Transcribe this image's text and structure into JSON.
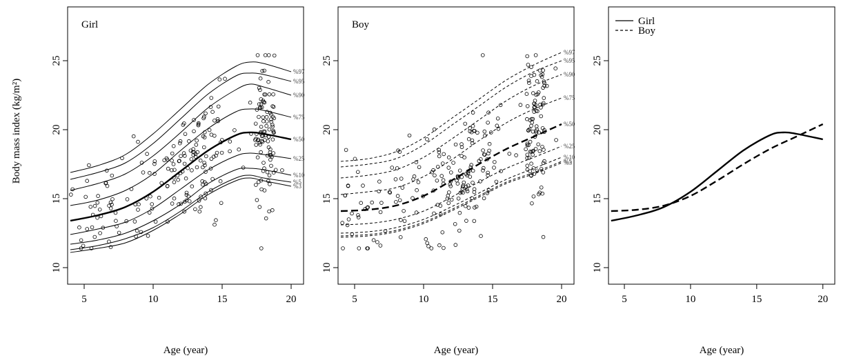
{
  "ylabel": "Body mass index (kg/m²)",
  "chart_data": [
    {
      "type": "line",
      "panel_label": "Girl",
      "xlabel": "Age (year)",
      "xlim": [
        3.8,
        20.9
      ],
      "ylim": [
        8.8,
        28.9
      ],
      "xticks": [
        5,
        10,
        15,
        20
      ],
      "yticks": [
        10,
        15,
        20,
        25
      ],
      "x": [
        4,
        6,
        8,
        10,
        12,
        14,
        16,
        17,
        18,
        20
      ],
      "series": [
        {
          "name": "%97",
          "values": [
            16.9,
            17.4,
            18.2,
            19.7,
            21.5,
            23.3,
            24.6,
            24.9,
            24.8,
            24.2
          ]
        },
        {
          "name": "%95",
          "values": [
            16.4,
            16.9,
            17.6,
            19.0,
            20.8,
            22.6,
            23.9,
            24.1,
            24.0,
            23.5
          ]
        },
        {
          "name": "%90",
          "values": [
            15.6,
            16.1,
            16.8,
            18.1,
            19.8,
            21.6,
            22.9,
            23.3,
            23.1,
            22.5
          ]
        },
        {
          "name": "%75",
          "values": [
            14.5,
            14.9,
            15.6,
            16.8,
            18.5,
            20.1,
            21.3,
            21.5,
            21.4,
            20.9
          ]
        },
        {
          "name": "%50",
          "values": [
            13.4,
            13.8,
            14.4,
            15.5,
            17.0,
            18.5,
            19.6,
            19.8,
            19.7,
            19.3
          ]
        },
        {
          "name": "%25",
          "values": [
            12.4,
            12.8,
            13.3,
            14.3,
            15.7,
            17.1,
            18.1,
            18.3,
            18.2,
            17.9
          ]
        },
        {
          "name": "%10",
          "values": [
            11.7,
            12.0,
            12.5,
            13.4,
            14.6,
            16.1,
            17.1,
            17.2,
            17.1,
            16.7
          ]
        },
        {
          "name": "%5",
          "values": [
            11.3,
            11.6,
            12.1,
            12.9,
            14.1,
            15.5,
            16.5,
            16.7,
            16.5,
            16.2
          ]
        },
        {
          "name": "%3",
          "values": [
            11.1,
            11.4,
            11.8,
            12.7,
            13.9,
            15.3,
            16.3,
            16.5,
            16.3,
            15.9
          ]
        }
      ],
      "median_series": "%50",
      "has_scatter": true
    },
    {
      "type": "line",
      "panel_label": "Boy",
      "xlabel": "Age (year)",
      "xlim": [
        3.8,
        20.9
      ],
      "ylim": [
        8.8,
        28.9
      ],
      "xticks": [
        5,
        10,
        15,
        20
      ],
      "yticks": [
        10,
        15,
        20,
        25
      ],
      "x": [
        4,
        6,
        8,
        10,
        12,
        14,
        16,
        18,
        20
      ],
      "series": [
        {
          "name": "%97",
          "values": [
            17.7,
            17.9,
            18.4,
            19.4,
            20.8,
            22.2,
            23.6,
            24.7,
            25.6
          ]
        },
        {
          "name": "%95",
          "values": [
            17.3,
            17.5,
            17.9,
            18.9,
            20.3,
            21.7,
            23.1,
            24.2,
            25.0
          ]
        },
        {
          "name": "%90",
          "values": [
            16.5,
            16.7,
            17.1,
            18.0,
            19.3,
            20.7,
            22.1,
            23.2,
            24.0
          ]
        },
        {
          "name": "%75",
          "values": [
            15.3,
            15.5,
            15.8,
            16.6,
            17.8,
            19.2,
            20.5,
            21.5,
            22.3
          ]
        },
        {
          "name": "%50",
          "values": [
            14.1,
            14.2,
            14.5,
            15.2,
            16.3,
            17.5,
            18.6,
            19.5,
            20.4
          ]
        },
        {
          "name": "%25",
          "values": [
            13.1,
            13.2,
            13.5,
            14.1,
            15.1,
            16.2,
            17.2,
            18.0,
            18.8
          ]
        },
        {
          "name": "%10",
          "values": [
            12.5,
            12.6,
            12.9,
            13.5,
            14.4,
            15.4,
            16.4,
            17.2,
            18.0
          ]
        },
        {
          "name": "%5",
          "values": [
            12.3,
            12.4,
            12.7,
            13.3,
            14.2,
            15.2,
            16.2,
            16.9,
            17.7
          ]
        },
        {
          "name": "%3",
          "values": [
            12.2,
            12.3,
            12.6,
            13.2,
            14.1,
            15.1,
            16.1,
            16.8,
            17.6
          ]
        }
      ],
      "median_series": "%50",
      "has_scatter": true
    },
    {
      "type": "line",
      "panel_label": "",
      "xlabel": "Age (year)",
      "xlim": [
        3.8,
        20.9
      ],
      "ylim": [
        8.8,
        28.9
      ],
      "xticks": [
        5,
        10,
        15,
        20
      ],
      "yticks": [
        10,
        15,
        20,
        25
      ],
      "legend": {
        "position": "top-left",
        "entries": [
          "Girl",
          "Boy"
        ]
      },
      "series": [
        {
          "name": "Girl",
          "style": "solid",
          "x": [
            4,
            6,
            8,
            10,
            12,
            14,
            16,
            17,
            18,
            20
          ],
          "values": [
            13.4,
            13.8,
            14.4,
            15.5,
            17.0,
            18.5,
            19.6,
            19.8,
            19.7,
            19.3
          ]
        },
        {
          "name": "Boy",
          "style": "dashed",
          "x": [
            4,
            6,
            8,
            10,
            12,
            14,
            16,
            18,
            20
          ],
          "values": [
            14.1,
            14.2,
            14.5,
            15.2,
            16.3,
            17.5,
            18.6,
            19.5,
            20.4
          ]
        }
      ]
    }
  ]
}
